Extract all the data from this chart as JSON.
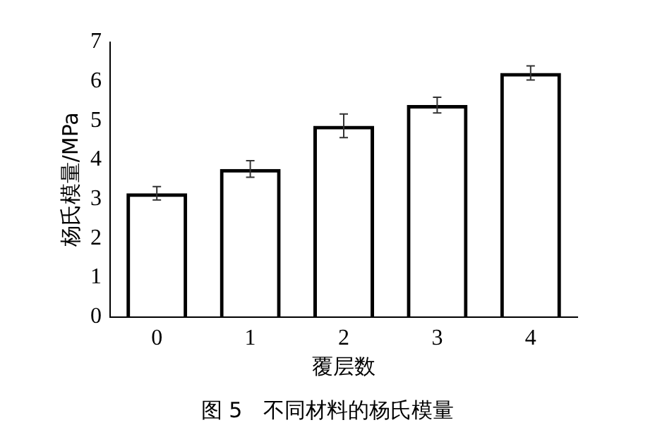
{
  "chart_data": {
    "type": "bar",
    "xlabel": "覆层数",
    "ylabel": "杨氏模量/MPa",
    "categories": [
      "0",
      "1",
      "2",
      "3",
      "4"
    ],
    "values": [
      3.15,
      3.77,
      4.87,
      5.4,
      6.22
    ],
    "errors": [
      0.17,
      0.21,
      0.3,
      0.2,
      0.18
    ],
    "color": "#000000",
    "ylim": [
      0,
      7
    ],
    "yticks": [
      0,
      1,
      2,
      3,
      4,
      5,
      6,
      7
    ],
    "grid": false,
    "legend": false,
    "annotations": [
      "图 5　不同材料的杨氏模量"
    ]
  }
}
